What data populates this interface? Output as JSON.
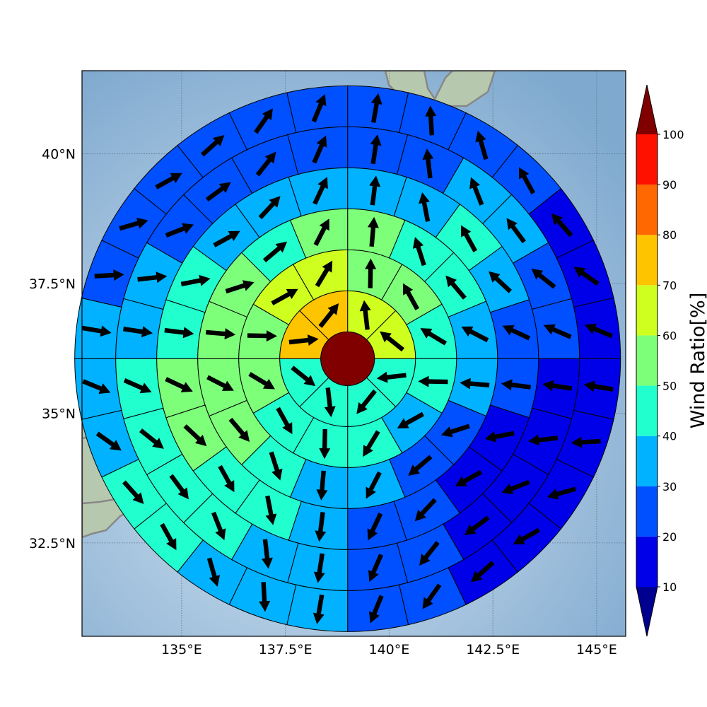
{
  "map": {
    "lon_range": [
      132.6,
      145.7
    ],
    "lat_range": [
      30.7,
      41.6
    ],
    "lon_ticks": [
      {
        "value": 135,
        "label": "135°E"
      },
      {
        "value": 137.5,
        "label": "137.5°E"
      },
      {
        "value": 140,
        "label": "140°E"
      },
      {
        "value": 142.5,
        "label": "142.5°E"
      },
      {
        "value": 145,
        "label": "145°E"
      }
    ],
    "lat_ticks": [
      {
        "value": 32.5,
        "label": "32.5°N"
      },
      {
        "value": 35,
        "label": "35°N"
      },
      {
        "value": 37.5,
        "label": "37.5°N"
      },
      {
        "value": 40,
        "label": "40°N"
      }
    ],
    "gridlines": true,
    "coastline_color": "#888888",
    "ocean_color": "#8fb5d6",
    "land_color": "#a9c3a4"
  },
  "polar_grid": {
    "center": {
      "lon": 139.0,
      "lat": 36.05
    },
    "center_value": 100,
    "ring_count": 6,
    "ring_sectors": [
      8,
      12,
      16,
      20,
      24,
      28
    ],
    "values": [
      [
        65,
        65,
        45,
        45,
        45,
        45,
        72,
        70
      ],
      [
        55,
        55,
        45,
        45,
        35,
        45,
        45,
        45,
        55,
        55,
        65,
        65
      ],
      [
        52,
        42,
        40,
        35,
        35,
        25,
        25,
        35,
        35,
        45,
        55,
        55,
        55,
        55,
        45,
        52
      ],
      [
        32,
        32,
        42,
        35,
        25,
        25,
        15,
        15,
        25,
        25,
        35,
        45,
        45,
        55,
        55,
        45,
        45,
        35,
        35,
        35
      ],
      [
        22,
        22,
        32,
        32,
        22,
        22,
        15,
        15,
        15,
        15,
        22,
        22,
        35,
        35,
        45,
        45,
        45,
        45,
        35,
        35,
        25,
        25,
        22,
        22
      ],
      [
        22,
        22,
        22,
        22,
        15,
        15,
        15,
        15,
        15,
        15,
        15,
        15,
        22,
        22,
        35,
        35,
        35,
        45,
        45,
        35,
        35,
        35,
        22,
        22,
        22,
        22,
        22,
        22
      ]
    ],
    "arrow_color": "#000000"
  },
  "colorbar": {
    "title": "Wind Ratio[%]",
    "ticks": [
      10,
      20,
      30,
      40,
      50,
      60,
      70,
      80,
      90,
      100
    ],
    "range": [
      10,
      100
    ],
    "colors": [
      "#0000e8",
      "#0050ff",
      "#00b2ff",
      "#21ffcf",
      "#7dff7a",
      "#cfff1f",
      "#ffc400",
      "#ff6800",
      "#ff1100"
    ],
    "under_color": "#000090",
    "over_color": "#800000",
    "extend": "both"
  }
}
